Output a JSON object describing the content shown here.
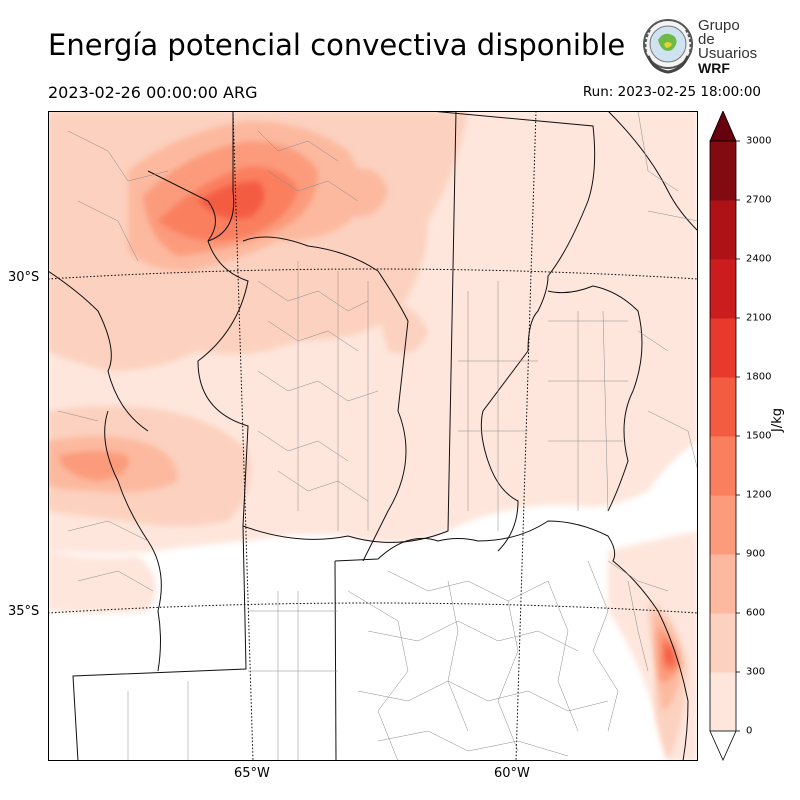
{
  "title": "Energía potencial convectiva disponible",
  "valid_time": "2023-02-26 00:00:00 ARG",
  "run_time": "Run: 2023-02-25 18:00:00",
  "logo": {
    "line1": "Grupo de",
    "line2": "Usuarios",
    "line3": "WRF"
  },
  "axes": {
    "lat_labels": [
      "30°S",
      "35°S"
    ],
    "lon_labels": [
      "65°W",
      "60°W"
    ]
  },
  "colorbar": {
    "unit": "J/kg",
    "levels": [
      0,
      300,
      600,
      900,
      1200,
      1500,
      1800,
      2100,
      2400,
      2700,
      3000
    ],
    "colors": [
      "#fee6dc",
      "#fcd1bf",
      "#fcb99f",
      "#fb9b7b",
      "#fa7f5e",
      "#f45c42",
      "#e8392d",
      "#cc1d1e",
      "#ae1217",
      "#820a11"
    ],
    "extend_color": "#67000d",
    "under_color": "#ffffff"
  }
}
